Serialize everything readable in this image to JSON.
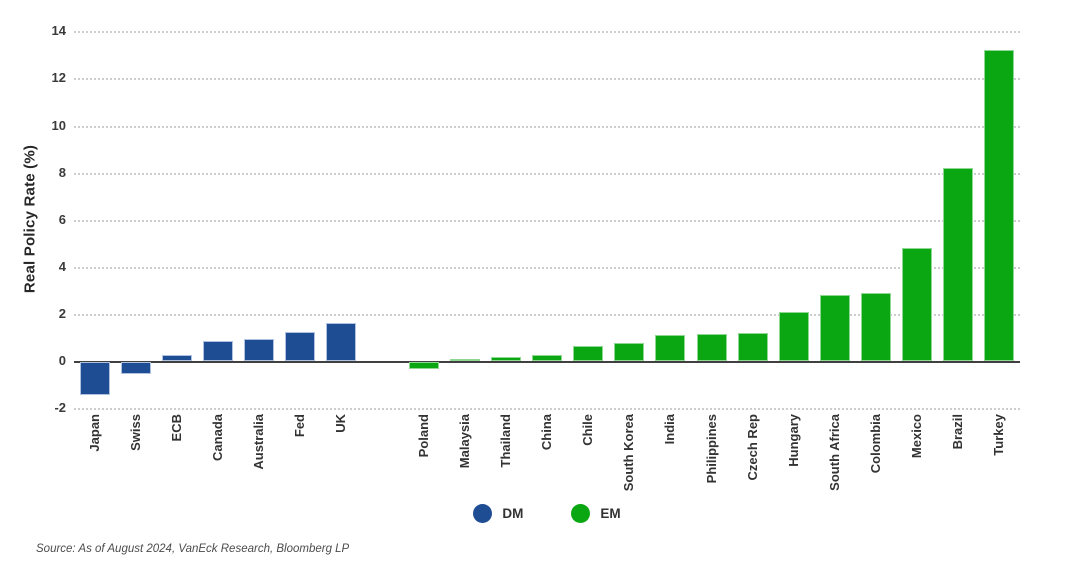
{
  "chart_data": {
    "type": "bar",
    "title": "",
    "ylabel": "Real Policy Rate (%)",
    "xlabel": "",
    "ylim": [
      -2,
      14
    ],
    "yticks": [
      14,
      12,
      10,
      8,
      6,
      4,
      2,
      0,
      -2
    ],
    "grid": "horizontal-dotted",
    "legend_position": "bottom-center",
    "bar_label_rotation": 90,
    "series": [
      {
        "name": "DM",
        "color": "#1F4D94",
        "stroke": "#AFC3E1",
        "categories": [
          "Japan",
          "Swiss",
          "ECB",
          "Canada",
          "Australia",
          "Fed",
          "UK"
        ],
        "values": [
          -1.4,
          -0.5,
          0.25,
          0.85,
          0.95,
          1.25,
          1.6
        ]
      },
      {
        "name": "EM",
        "color": "#0BA712",
        "stroke": "#8FD894",
        "categories": [
          "Poland",
          "Malaysia",
          "Thailand",
          "China",
          "Chile",
          "South Korea",
          "India",
          "Philippines",
          "Czech Rep",
          "Hungary",
          "South Africa",
          "Colombia",
          "Mexico",
          "Brazil",
          "Turkey"
        ],
        "values": [
          -0.3,
          0.1,
          0.15,
          0.25,
          0.65,
          0.75,
          1.1,
          1.15,
          1.2,
          2.1,
          2.8,
          2.9,
          4.8,
          8.2,
          13.2
        ]
      }
    ]
  },
  "legend": {
    "dm_label": "DM",
    "em_label": "EM"
  },
  "source_note": "Source: As of August 2024, VanEck Research, Bloomberg LP"
}
